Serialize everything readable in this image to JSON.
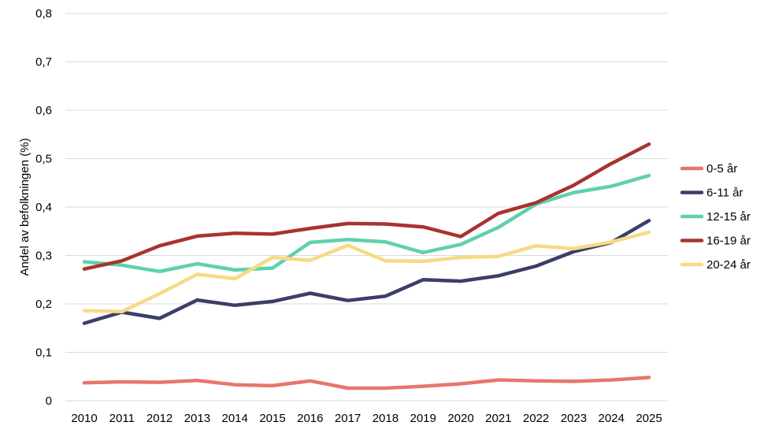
{
  "chart_data": {
    "type": "line",
    "title": "",
    "xlabel": "",
    "ylabel": "Andel av befolkningen (%)",
    "ylim": [
      0,
      0.8
    ],
    "yticks": [
      "0",
      "0,1",
      "0,2",
      "0,3",
      "0,4",
      "0,5",
      "0,6",
      "0,7",
      "0,8"
    ],
    "grid": true,
    "legend_position": "right",
    "categories": [
      "2010",
      "2011",
      "2012",
      "2013",
      "2014",
      "2015",
      "2016",
      "2017",
      "2018",
      "2019",
      "2020",
      "2021",
      "2022",
      "2023",
      "2024",
      "2025"
    ],
    "series": [
      {
        "name": "0-5 år",
        "color": "#E8766B",
        "values": [
          0.037,
          0.039,
          0.038,
          0.042,
          0.033,
          0.031,
          0.041,
          0.026,
          0.026,
          0.03,
          0.035,
          0.043,
          0.041,
          0.04,
          0.043,
          0.048
        ]
      },
      {
        "name": "6-11 år",
        "color": "#3B3E6B",
        "values": [
          0.16,
          0.183,
          0.17,
          0.208,
          0.197,
          0.205,
          0.222,
          0.207,
          0.216,
          0.25,
          0.247,
          0.258,
          0.278,
          0.308,
          0.327,
          0.372
        ]
      },
      {
        "name": "12-15 år",
        "color": "#5FD0AE",
        "values": [
          0.287,
          0.28,
          0.267,
          0.283,
          0.27,
          0.274,
          0.327,
          0.333,
          0.328,
          0.306,
          0.323,
          0.358,
          0.406,
          0.43,
          0.443,
          0.465
        ]
      },
      {
        "name": "16-19 år",
        "color": "#A8332E",
        "values": [
          0.272,
          0.289,
          0.32,
          0.34,
          0.346,
          0.344,
          0.356,
          0.366,
          0.365,
          0.359,
          0.339,
          0.387,
          0.409,
          0.445,
          0.49,
          0.53
        ]
      },
      {
        "name": "20-24 år",
        "color": "#F6DA86",
        "values": [
          0.186,
          0.184,
          0.221,
          0.261,
          0.252,
          0.296,
          0.29,
          0.321,
          0.289,
          0.288,
          0.296,
          0.298,
          0.32,
          0.314,
          0.328,
          0.348
        ]
      }
    ]
  }
}
